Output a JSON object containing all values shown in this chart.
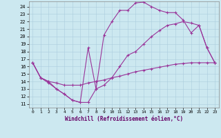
{
  "bg_color": "#cce8f0",
  "line_color": "#993399",
  "grid_color": "#aaccdd",
  "xlabel": "Windchill (Refroidissement éolien,°C)",
  "xlabel_color": "#660066",
  "xlim": [
    -0.5,
    23.5
  ],
  "ylim": [
    10.5,
    24.7
  ],
  "xticks": [
    0,
    1,
    2,
    3,
    4,
    5,
    6,
    7,
    8,
    9,
    10,
    11,
    12,
    13,
    14,
    15,
    16,
    17,
    18,
    19,
    20,
    21,
    22,
    23
  ],
  "yticks": [
    11,
    12,
    13,
    14,
    15,
    16,
    17,
    18,
    19,
    20,
    21,
    22,
    23,
    24
  ],
  "line1_x": [
    0,
    1,
    2,
    3,
    4,
    5,
    6,
    7,
    8,
    9,
    10,
    11,
    12,
    13,
    14,
    15,
    16,
    17,
    18,
    19,
    20,
    21,
    22,
    23
  ],
  "line1_y": [
    16.5,
    14.5,
    14.0,
    13.0,
    12.3,
    11.5,
    11.2,
    11.2,
    13.0,
    20.2,
    22.0,
    23.5,
    23.5,
    24.5,
    24.6,
    24.0,
    23.5,
    23.2,
    23.2,
    22.2,
    20.5,
    21.5,
    18.5,
    16.5
  ],
  "line2_x": [
    0,
    1,
    2,
    3,
    4,
    5,
    6,
    7,
    8,
    9,
    10,
    11,
    12,
    13,
    14,
    15,
    16,
    17,
    18,
    19,
    20,
    21,
    22,
    23
  ],
  "line2_y": [
    16.5,
    14.5,
    14.0,
    13.8,
    13.5,
    13.5,
    13.5,
    13.8,
    14.0,
    14.2,
    14.5,
    14.7,
    15.0,
    15.3,
    15.5,
    15.7,
    15.9,
    16.1,
    16.3,
    16.4,
    16.5,
    16.5,
    16.5,
    16.5
  ],
  "line3_x": [
    0,
    1,
    2,
    3,
    4,
    5,
    6,
    7,
    8,
    9,
    10,
    11,
    12,
    13,
    14,
    15,
    16,
    17,
    18,
    19,
    20,
    21,
    22,
    23
  ],
  "line3_y": [
    16.5,
    14.5,
    13.8,
    13.0,
    12.3,
    11.5,
    11.2,
    18.5,
    13.0,
    13.5,
    14.5,
    16.0,
    17.5,
    18.0,
    19.0,
    20.0,
    20.8,
    21.5,
    21.7,
    22.0,
    21.8,
    21.5,
    18.5,
    16.5
  ]
}
